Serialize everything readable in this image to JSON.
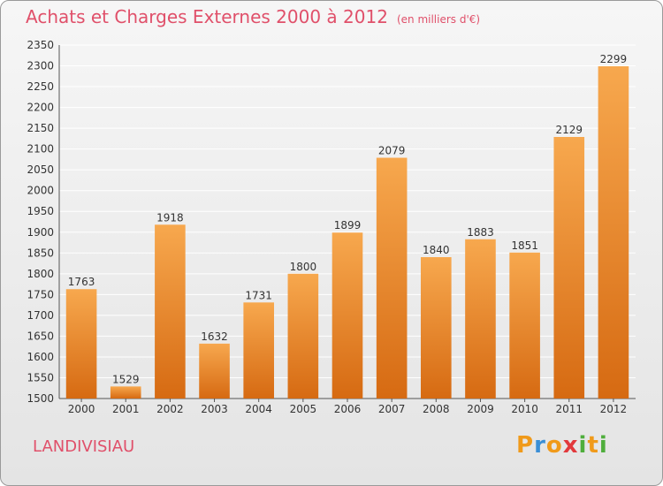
{
  "title": "Achats et Charges Externes 2000 à 2012",
  "subtitle": "(en milliers d'€)",
  "commune": "LANDIVISIAU",
  "logo": {
    "text": "Proxiti",
    "letters": [
      "P",
      "r",
      "o",
      "x",
      "i",
      "t",
      "i"
    ],
    "colors": [
      "#f09a1a",
      "#3a8fd6",
      "#f09a1a",
      "#e2393c",
      "#4fae3c",
      "#f09a1a",
      "#4fae3c"
    ]
  },
  "colors": {
    "bar_light": "#f7a84e",
    "bar_dark": "#d66a12",
    "title": "#e0506a",
    "grid": "#ffffff"
  },
  "chart_data": {
    "type": "bar",
    "categories": [
      "2000",
      "2001",
      "2002",
      "2003",
      "2004",
      "2005",
      "2006",
      "2007",
      "2008",
      "2009",
      "2010",
      "2011",
      "2012"
    ],
    "values": [
      1763,
      1529,
      1918,
      1632,
      1731,
      1800,
      1899,
      2079,
      1840,
      1883,
      1851,
      2129,
      2299
    ],
    "yticks": [
      1500,
      1550,
      1600,
      1650,
      1700,
      1750,
      1800,
      1850,
      1900,
      1950,
      2000,
      2050,
      2100,
      2150,
      2200,
      2250,
      2300,
      2350
    ],
    "ylim": [
      1500,
      2350
    ],
    "grid": true,
    "legend": "none",
    "title": "Achats et Charges Externes 2000 à 2012",
    "xlabel": "",
    "ylabel": ""
  }
}
